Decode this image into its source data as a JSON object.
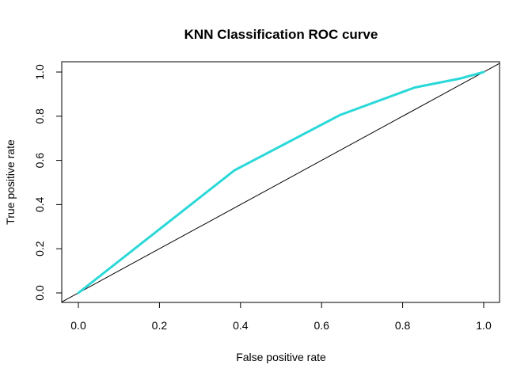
{
  "chart_data": {
    "type": "line",
    "title": "KNN Classification ROC curve",
    "xlabel": "False positive rate",
    "ylabel": "True positive rate",
    "xlim": [
      0,
      1
    ],
    "ylim": [
      0,
      1
    ],
    "x_ticks": [
      "0.0",
      "0.2",
      "0.4",
      "0.6",
      "0.8",
      "1.0"
    ],
    "y_ticks": [
      "0.0",
      "0.2",
      "0.4",
      "0.6",
      "0.8",
      "1.0"
    ],
    "grid": false,
    "series": [
      {
        "color": "#2ad8d8",
        "x": [
          0.0,
          0.385,
          0.645,
          0.83,
          0.94,
          1.0
        ],
        "y": [
          0.0,
          0.555,
          0.805,
          0.93,
          0.97,
          1.0
        ]
      }
    ],
    "reference_line": {
      "intercept": 0,
      "slope": 1,
      "color": "#000000"
    }
  }
}
